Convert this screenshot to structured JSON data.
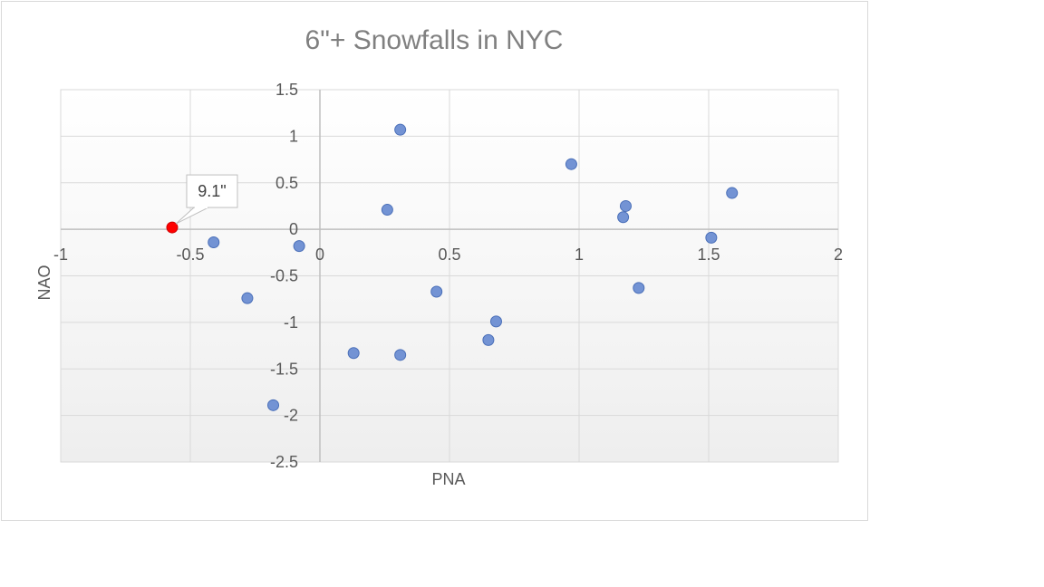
{
  "chart_data": {
    "type": "scatter",
    "title": "6\"+ Snowfalls in NYC",
    "xlabel": "PNA",
    "ylabel": "NAO",
    "xlim": [
      -1,
      2
    ],
    "ylim": [
      -2.5,
      1.5
    ],
    "x_ticks": [
      "-1",
      "-0.5",
      "0",
      "0.5",
      "1",
      "1.5",
      "2"
    ],
    "y_ticks": [
      "1.5",
      "1",
      "0.5",
      "0",
      "-0.5",
      "-1",
      "-1.5",
      "-2",
      "-2.5"
    ],
    "grid": true,
    "legend": "none",
    "series": [
      {
        "color": "#7393d4",
        "points": [
          [
            -0.41,
            -0.14
          ],
          [
            -0.28,
            -0.74
          ],
          [
            -0.18,
            -1.89
          ],
          [
            -0.08,
            -0.18
          ],
          [
            0.13,
            -1.33
          ],
          [
            0.26,
            0.21
          ],
          [
            0.31,
            1.07
          ],
          [
            0.31,
            -1.35
          ],
          [
            0.45,
            -0.67
          ],
          [
            0.65,
            -1.19
          ],
          [
            0.68,
            -0.99
          ],
          [
            0.97,
            0.7
          ],
          [
            1.17,
            0.13
          ],
          [
            1.18,
            0.25
          ],
          [
            1.23,
            -0.63
          ],
          [
            1.51,
            -0.09
          ],
          [
            1.59,
            0.39
          ]
        ]
      }
    ],
    "highlight": {
      "x": -0.57,
      "y": 0.02,
      "label": "9.1\"",
      "color": "#ff0000"
    }
  }
}
